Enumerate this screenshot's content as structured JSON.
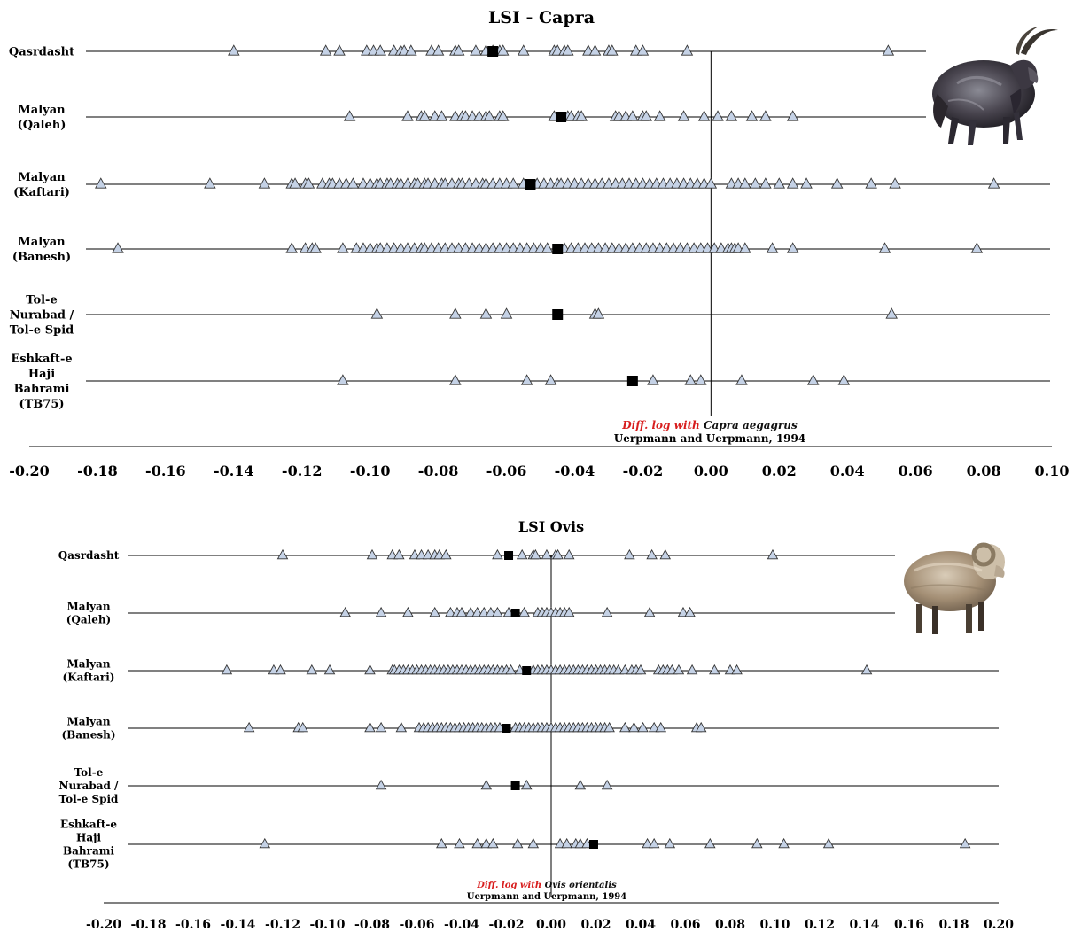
{
  "chart_data": [
    {
      "type": "scatter",
      "title": "LSI - Capra",
      "xlim": [
        -0.2,
        0.1
      ],
      "x_ticks": [
        "-0.20",
        "-0.18",
        "-0.16",
        "-0.14",
        "-0.12",
        "-0.10",
        "-0.08",
        "-0.06",
        "-0.04",
        "-0.02",
        "0.00",
        "0.02",
        "0.04",
        "0.06",
        "0.08",
        "0.10"
      ],
      "reference_note": {
        "prefix": "Diff. log with ",
        "taxon": "Capra aegagrus",
        "citation": "Uerpmann and Uerpmann, 1994"
      },
      "legend": [],
      "sites": [
        {
          "label_lines": [
            "Qasrdasht"
          ],
          "mean": -0.064,
          "values": [
            -0.14,
            -0.113,
            -0.109,
            -0.101,
            -0.099,
            -0.097,
            -0.093,
            -0.091,
            -0.09,
            -0.088,
            -0.082,
            -0.08,
            -0.075,
            -0.074,
            -0.069,
            -0.066,
            -0.064,
            -0.062,
            -0.061,
            -0.055,
            -0.046,
            -0.045,
            -0.043,
            -0.042,
            -0.036,
            -0.034,
            -0.03,
            -0.029,
            -0.022,
            -0.02,
            -0.007,
            0.052
          ]
        },
        {
          "label_lines": [
            "Malyan",
            "(Qaleh)"
          ],
          "mean": -0.044,
          "values": [
            -0.106,
            -0.089,
            -0.085,
            -0.084,
            -0.081,
            -0.079,
            -0.075,
            -0.073,
            -0.072,
            -0.07,
            -0.068,
            -0.066,
            -0.065,
            -0.062,
            -0.061,
            -0.046,
            -0.042,
            -0.041,
            -0.039,
            -0.038,
            -0.028,
            -0.027,
            -0.025,
            -0.023,
            -0.02,
            -0.019,
            -0.015,
            -0.008,
            -0.002,
            0.002,
            0.006,
            0.012,
            0.016,
            0.024
          ]
        },
        {
          "label_lines": [
            "Malyan",
            "(Kaftari)"
          ],
          "mean": -0.053,
          "values": [
            -0.179,
            -0.147,
            -0.131,
            -0.123,
            -0.122,
            -0.119,
            -0.118,
            -0.114,
            -0.112,
            -0.111,
            -0.109,
            -0.107,
            -0.105,
            -0.102,
            -0.1,
            -0.098,
            -0.097,
            -0.095,
            -0.094,
            -0.092,
            -0.091,
            -0.089,
            -0.087,
            -0.086,
            -0.084,
            -0.083,
            -0.081,
            -0.079,
            -0.078,
            -0.076,
            -0.074,
            -0.073,
            -0.071,
            -0.069,
            -0.067,
            -0.066,
            -0.064,
            -0.062,
            -0.06,
            -0.058,
            -0.055,
            -0.051,
            -0.049,
            -0.047,
            -0.045,
            -0.044,
            -0.042,
            -0.04,
            -0.038,
            -0.036,
            -0.034,
            -0.032,
            -0.03,
            -0.028,
            -0.026,
            -0.024,
            -0.022,
            -0.02,
            -0.018,
            -0.016,
            -0.014,
            -0.012,
            -0.01,
            -0.008,
            -0.006,
            -0.004,
            -0.002,
            0.0,
            0.006,
            0.008,
            0.01,
            0.013,
            0.016,
            0.02,
            0.024,
            0.028,
            0.037,
            0.047,
            0.054,
            0.083
          ]
        },
        {
          "label_lines": [
            "Malyan",
            "(Banesh)"
          ],
          "mean": -0.045,
          "values": [
            -0.174,
            -0.123,
            -0.119,
            -0.117,
            -0.116,
            -0.108,
            -0.104,
            -0.102,
            -0.1,
            -0.098,
            -0.097,
            -0.095,
            -0.093,
            -0.091,
            -0.089,
            -0.087,
            -0.085,
            -0.084,
            -0.082,
            -0.08,
            -0.078,
            -0.076,
            -0.074,
            -0.072,
            -0.07,
            -0.068,
            -0.066,
            -0.064,
            -0.062,
            -0.06,
            -0.058,
            -0.056,
            -0.054,
            -0.052,
            -0.05,
            -0.048,
            -0.043,
            -0.041,
            -0.039,
            -0.037,
            -0.035,
            -0.033,
            -0.031,
            -0.029,
            -0.027,
            -0.025,
            -0.023,
            -0.021,
            -0.019,
            -0.017,
            -0.015,
            -0.013,
            -0.011,
            -0.009,
            -0.007,
            -0.005,
            -0.003,
            -0.001,
            0.001,
            0.003,
            0.005,
            0.006,
            0.007,
            0.008,
            0.01,
            0.018,
            0.024,
            0.051,
            0.078
          ]
        },
        {
          "label_lines": [
            "Tol-e",
            "Nurabad /",
            "Tol-e Spid"
          ],
          "mean": -0.045,
          "values": [
            -0.098,
            -0.075,
            -0.066,
            -0.06,
            -0.034,
            -0.033,
            0.053
          ]
        },
        {
          "label_lines": [
            "Eshkaft-e",
            "Haji",
            "Bahrami",
            "(TB75)"
          ],
          "mean": -0.023,
          "values": [
            -0.108,
            -0.075,
            -0.054,
            -0.047,
            -0.017,
            -0.006,
            -0.003,
            0.009,
            0.03,
            0.039
          ]
        }
      ]
    },
    {
      "type": "scatter",
      "title": "LSI Ovis",
      "xlim": [
        -0.2,
        0.2
      ],
      "x_ticks": [
        "-0.20",
        "-0.18",
        "-0.16",
        "-0.14",
        "-0.12",
        "-0.10",
        "-0.08",
        "-0.06",
        "-0.04",
        "-0.02",
        "0.00",
        "0.02",
        "0.04",
        "0.06",
        "0.08",
        "0.10",
        "0.12",
        "0.14",
        "0.16",
        "0.18",
        "0.20"
      ],
      "reference_note": {
        "prefix": "Diff. log with ",
        "taxon": "Ovis orientalis",
        "citation": "Uerpmann and Uerpmann, 1994"
      },
      "legend": [],
      "sites": [
        {
          "label_lines": [
            "Qasrdasht"
          ],
          "mean": -0.019,
          "values": [
            -0.12,
            -0.08,
            -0.071,
            -0.068,
            -0.061,
            -0.058,
            -0.055,
            -0.052,
            -0.05,
            -0.047,
            -0.024,
            -0.013,
            -0.008,
            -0.007,
            -0.002,
            0.002,
            0.003,
            0.008,
            0.035,
            0.045,
            0.051,
            0.099
          ]
        },
        {
          "label_lines": [
            "Malyan",
            "(Qaleh)"
          ],
          "mean": -0.016,
          "values": [
            -0.092,
            -0.076,
            -0.064,
            -0.052,
            -0.045,
            -0.042,
            -0.04,
            -0.036,
            -0.033,
            -0.03,
            -0.027,
            -0.024,
            -0.019,
            -0.012,
            -0.006,
            -0.004,
            -0.002,
            0.0,
            0.002,
            0.004,
            0.006,
            0.008,
            0.025,
            0.044,
            0.059,
            0.062
          ]
        },
        {
          "label_lines": [
            "Malyan",
            "(Kaftari)"
          ],
          "mean": -0.011,
          "values": [
            -0.145,
            -0.124,
            -0.121,
            -0.107,
            -0.099,
            -0.081,
            -0.071,
            -0.07,
            -0.068,
            -0.066,
            -0.064,
            -0.062,
            -0.06,
            -0.058,
            -0.056,
            -0.054,
            -0.052,
            -0.05,
            -0.048,
            -0.046,
            -0.044,
            -0.042,
            -0.04,
            -0.038,
            -0.036,
            -0.034,
            -0.032,
            -0.03,
            -0.028,
            -0.026,
            -0.024,
            -0.022,
            -0.02,
            -0.018,
            -0.014,
            -0.008,
            -0.006,
            -0.004,
            -0.002,
            0.0,
            0.002,
            0.004,
            0.006,
            0.008,
            0.01,
            0.012,
            0.014,
            0.016,
            0.018,
            0.02,
            0.022,
            0.024,
            0.026,
            0.028,
            0.03,
            0.033,
            0.036,
            0.038,
            0.04,
            0.048,
            0.05,
            0.052,
            0.054,
            0.057,
            0.063,
            0.073,
            0.08,
            0.083,
            0.141
          ]
        },
        {
          "label_lines": [
            "Malyan",
            "(Banesh)"
          ],
          "mean": -0.02,
          "values": [
            -0.135,
            -0.113,
            -0.111,
            -0.081,
            -0.076,
            -0.067,
            -0.059,
            -0.057,
            -0.055,
            -0.053,
            -0.051,
            -0.049,
            -0.047,
            -0.045,
            -0.043,
            -0.041,
            -0.039,
            -0.037,
            -0.035,
            -0.033,
            -0.031,
            -0.029,
            -0.027,
            -0.025,
            -0.023,
            -0.016,
            -0.014,
            -0.012,
            -0.01,
            -0.008,
            -0.006,
            -0.004,
            -0.002,
            0.0,
            0.002,
            0.004,
            0.006,
            0.008,
            0.01,
            0.012,
            0.014,
            0.016,
            0.018,
            0.02,
            0.022,
            0.024,
            0.026,
            0.033,
            0.037,
            0.041,
            0.046,
            0.049,
            0.065,
            0.067
          ]
        },
        {
          "label_lines": [
            "Tol-e",
            "Nurabad /",
            "Tol-e Spid"
          ],
          "mean": -0.016,
          "values": [
            -0.076,
            -0.029,
            -0.011,
            0.013,
            0.025
          ]
        },
        {
          "label_lines": [
            "Eshkaft-e",
            "Haji",
            "Bahrami",
            "(TB75)"
          ],
          "mean": 0.019,
          "values": [
            -0.128,
            -0.049,
            -0.041,
            -0.033,
            -0.029,
            -0.026,
            -0.015,
            -0.008,
            0.004,
            0.007,
            0.011,
            0.013,
            0.016,
            0.043,
            0.046,
            0.053,
            0.071,
            0.092,
            0.104,
            0.124,
            0.185
          ]
        }
      ]
    }
  ],
  "colors": {
    "triangle_fill": "#c5d2e6",
    "triangle_stroke": "#333333",
    "mean_marker": "#000000",
    "axis": "#000000",
    "note_red": "#d81e1e"
  },
  "images": [
    {
      "icon": "goat-icon"
    },
    {
      "icon": "sheep-icon"
    }
  ]
}
